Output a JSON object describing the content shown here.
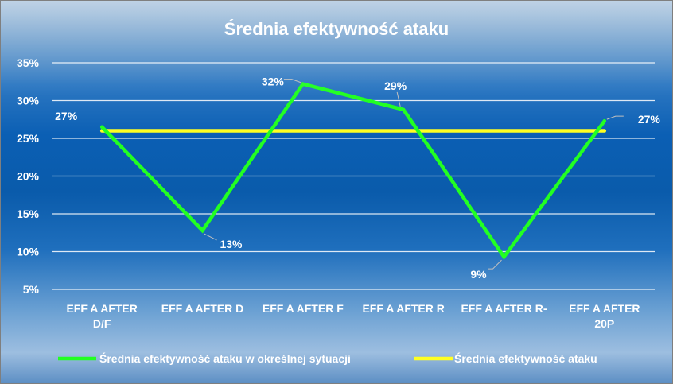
{
  "chart_data": {
    "type": "line",
    "title": "Średnia efektywność ataku",
    "xlabel": "",
    "ylabel": "",
    "categories": [
      [
        "EFF A AFTER",
        "D/F"
      ],
      [
        "EFF A AFTER D"
      ],
      [
        "EFF A AFTER F"
      ],
      [
        "EFF A AFTER  R"
      ],
      [
        "EFF A AFTER  R-"
      ],
      [
        "EFF A AFTER",
        "20P"
      ]
    ],
    "ylim": [
      0.05,
      0.35
    ],
    "yticks": [
      0.05,
      0.1,
      0.15,
      0.2,
      0.25,
      0.3,
      0.35
    ],
    "ytick_labels": [
      "5%",
      "10%",
      "15%",
      "20%",
      "25%",
      "30%",
      "35%"
    ],
    "grid": true,
    "legend_position": "bottom",
    "series": [
      {
        "name": "Średnia efektywność ataku w określnej sytuacji",
        "values": [
          0.265,
          0.128,
          0.322,
          0.288,
          0.093,
          0.273
        ],
        "data_labels": [
          "27%",
          "13%",
          "32%",
          "29%",
          "9%",
          "27%"
        ],
        "color": "#22ff22"
      },
      {
        "name": "Średnia efektywność ataku",
        "values": [
          0.26,
          0.26,
          0.26,
          0.26,
          0.26,
          0.26
        ],
        "color": "#ffff22"
      }
    ]
  }
}
